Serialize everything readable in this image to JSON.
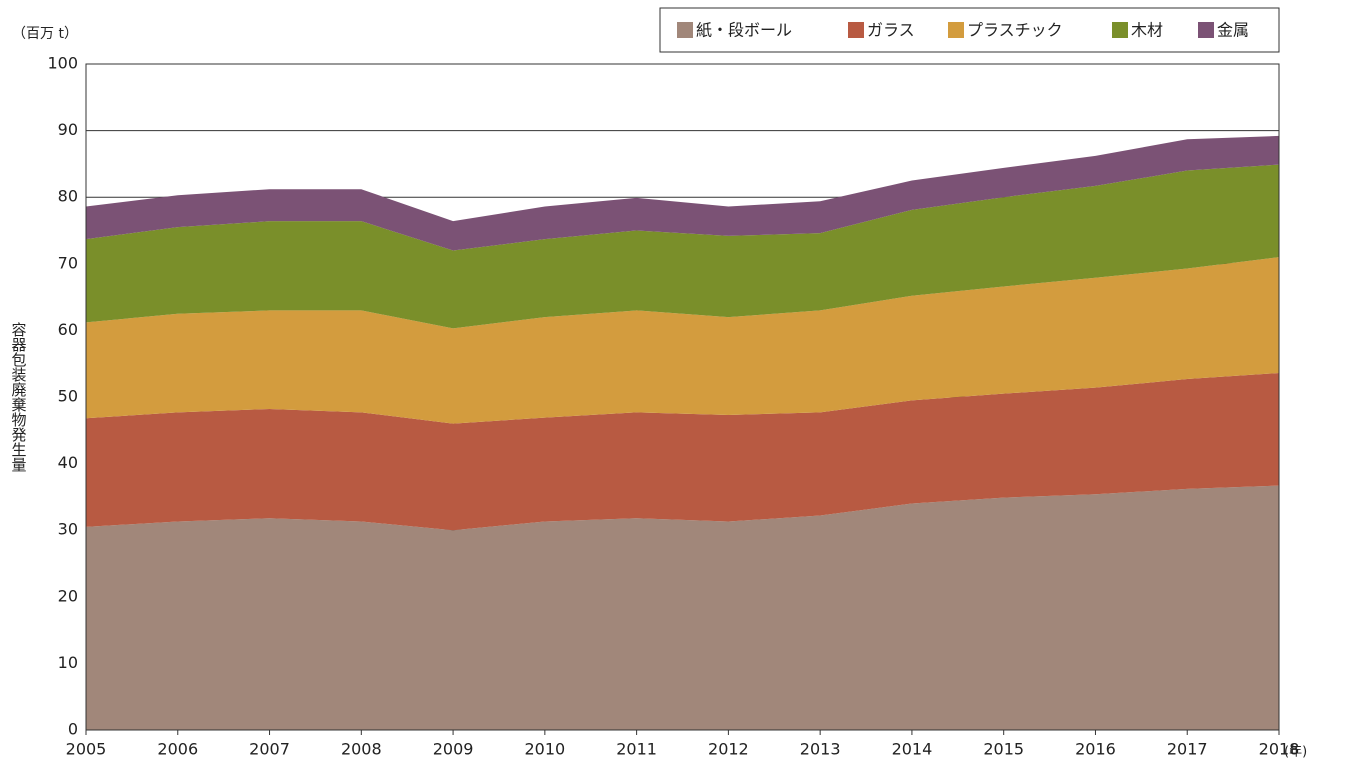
{
  "chart_data": {
    "type": "stacked_area",
    "y_unit": "（百万 t）",
    "x_unit": "(年)",
    "y_label": "容器包装廃棄物発生量",
    "x": [
      2005,
      2006,
      2007,
      2008,
      2009,
      2010,
      2011,
      2012,
      2013,
      2014,
      2015,
      2016,
      2017,
      2018
    ],
    "xlim": [
      2005,
      2018
    ],
    "xticks": [
      2005,
      2006,
      2007,
      2008,
      2009,
      2010,
      2011,
      2012,
      2013,
      2014,
      2015,
      2016,
      2017,
      2018
    ],
    "ylim": [
      0,
      100
    ],
    "yticks": [
      0,
      10,
      20,
      30,
      40,
      50,
      60,
      70,
      80,
      90,
      100
    ],
    "grid": true,
    "legend": "top-right",
    "series": [
      {
        "name": "紙・段ボール",
        "color": "#a1877a",
        "values": [
          30.5,
          31.3,
          31.8,
          31.3,
          30.0,
          31.3,
          31.8,
          31.3,
          32.2,
          34.0,
          34.9,
          35.4,
          36.2,
          36.7
        ]
      },
      {
        "name": "ガラス",
        "color": "#b85a42",
        "values": [
          16.3,
          16.4,
          16.4,
          16.4,
          16.0,
          15.6,
          15.9,
          16.0,
          15.5,
          15.5,
          15.6,
          16.0,
          16.5,
          16.9
        ]
      },
      {
        "name": "プラスチック",
        "color": "#d39c3e",
        "values": [
          14.4,
          14.8,
          14.8,
          15.3,
          14.3,
          15.1,
          15.3,
          14.7,
          15.3,
          15.7,
          16.1,
          16.5,
          16.6,
          17.4
        ]
      },
      {
        "name": "木材",
        "color": "#7a8f2a",
        "values": [
          12.5,
          13.0,
          13.4,
          13.4,
          11.7,
          11.7,
          12.0,
          12.2,
          11.6,
          12.9,
          13.4,
          13.8,
          14.7,
          13.9
        ]
      },
      {
        "name": "金属",
        "color": "#7b5275",
        "values": [
          4.9,
          4.8,
          4.8,
          4.8,
          4.4,
          4.9,
          4.9,
          4.4,
          4.8,
          4.4,
          4.4,
          4.5,
          4.7,
          4.3
        ]
      }
    ]
  }
}
